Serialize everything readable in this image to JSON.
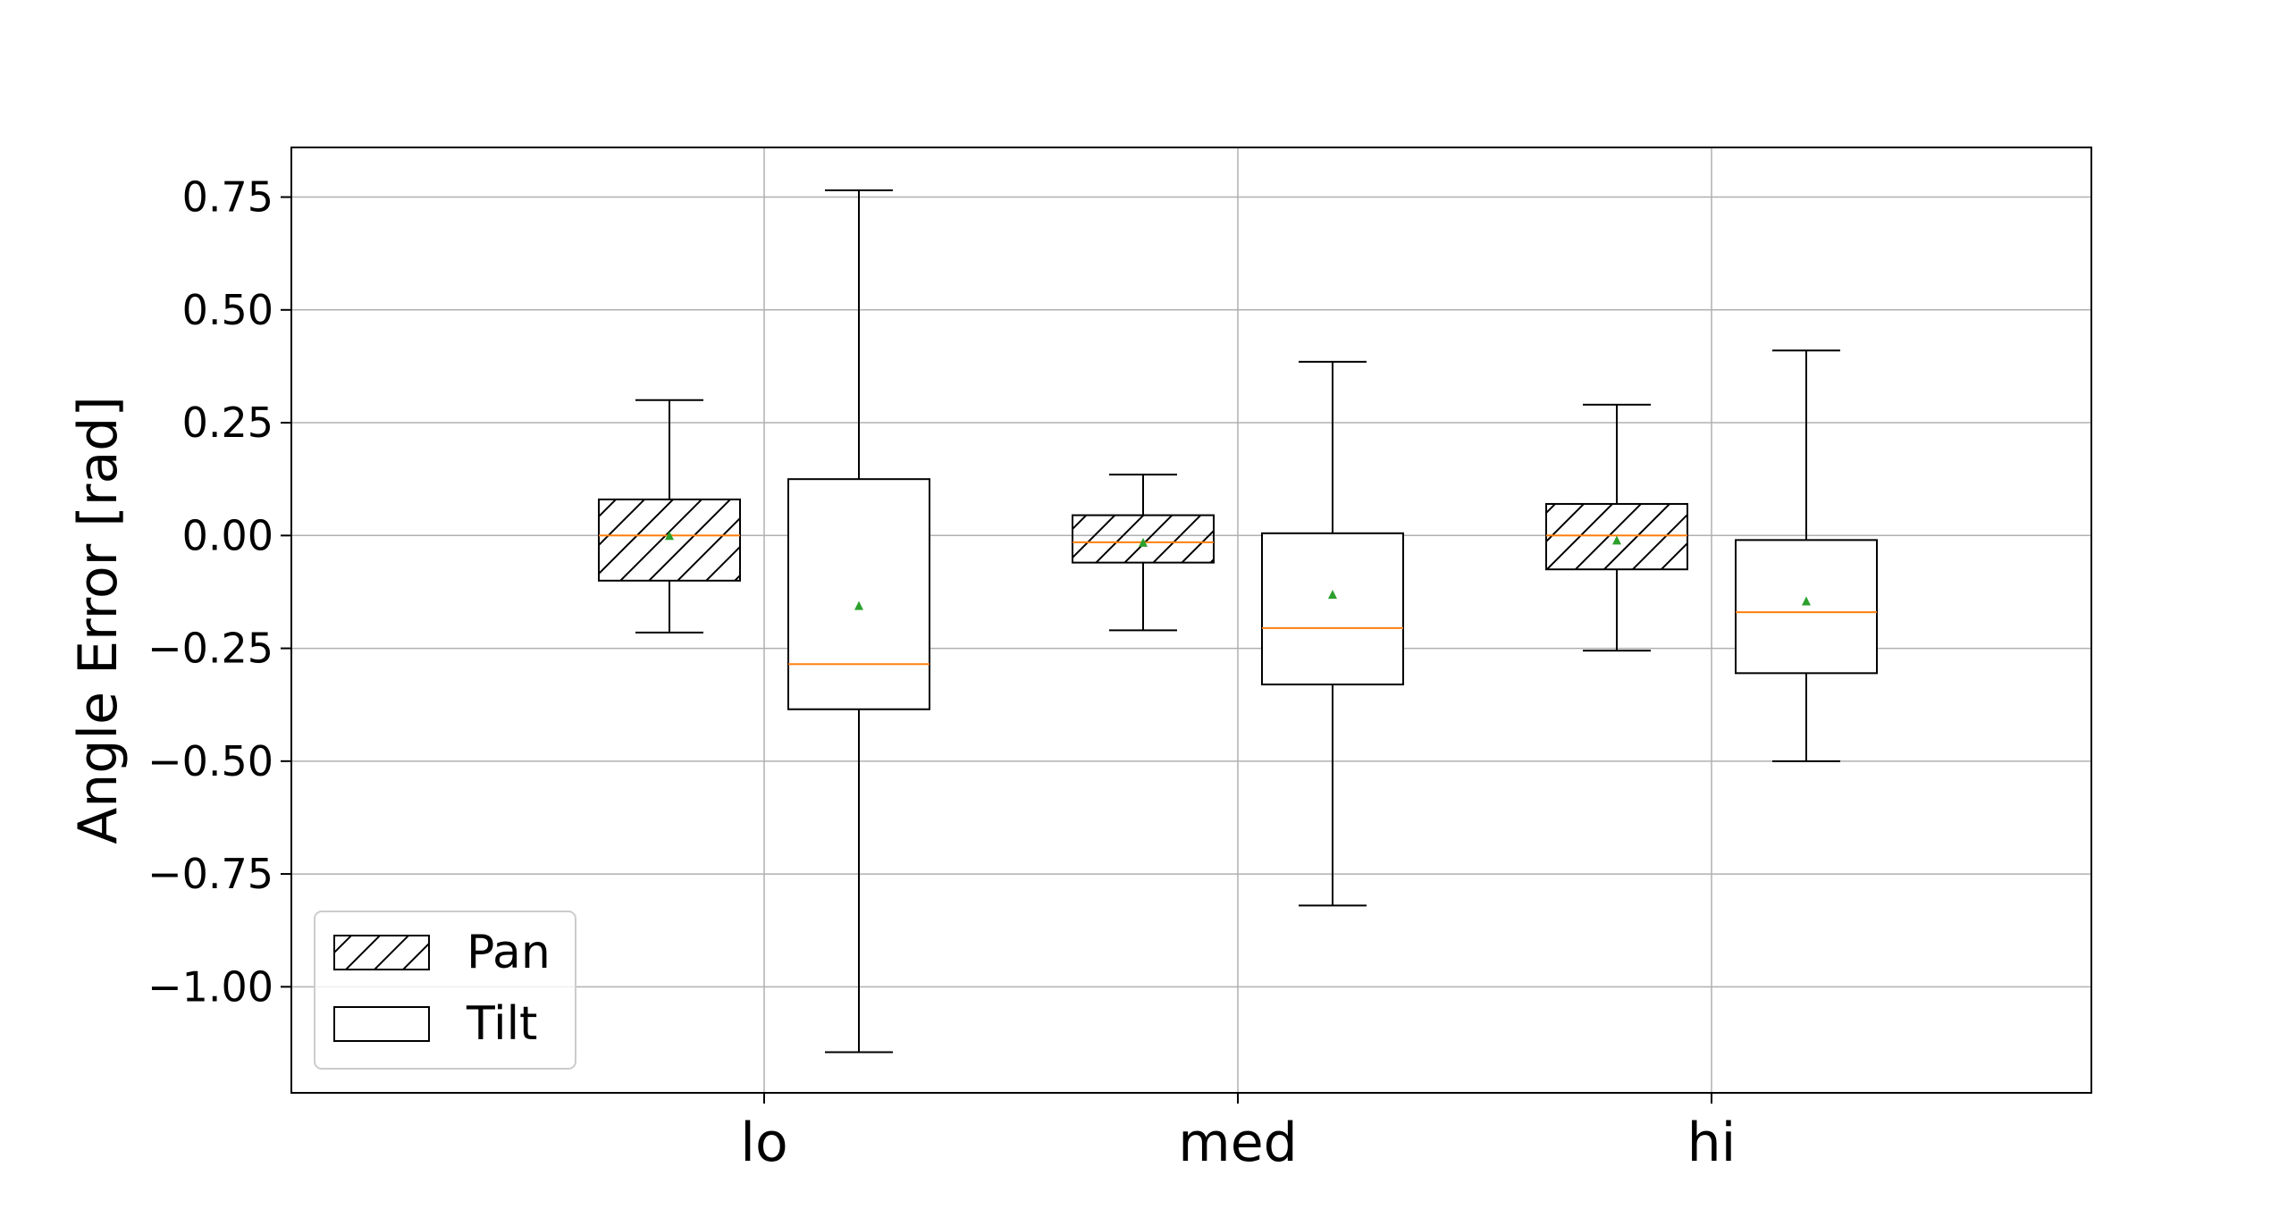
{
  "chart_data": {
    "type": "boxplot",
    "ylabel": "Angle Error [rad]",
    "xlabel": "",
    "title": "",
    "categories": [
      "lo",
      "med",
      "hi"
    ],
    "ylim": [
      -1.235,
      0.86
    ],
    "yticks": [
      0.75,
      0.5,
      0.25,
      0.0,
      -0.25,
      -0.5,
      -0.75,
      -1.0
    ],
    "ytick_labels": [
      "0.75",
      "0.50",
      "0.25",
      "0.00",
      "−0.25",
      "−0.50",
      "−0.75",
      "−1.00"
    ],
    "grid": true,
    "legend_position": "lower-left",
    "series": [
      {
        "name": "Pan",
        "hatch": true,
        "stats": [
          {
            "whislo": -0.215,
            "q1": -0.1,
            "med": 0.0,
            "q3": 0.08,
            "whishi": 0.3,
            "mean": 0.0
          },
          {
            "whislo": -0.21,
            "q1": -0.06,
            "med": -0.015,
            "q3": 0.045,
            "whishi": 0.135,
            "mean": -0.015
          },
          {
            "whislo": -0.255,
            "q1": -0.075,
            "med": 0.0,
            "q3": 0.07,
            "whishi": 0.29,
            "mean": -0.01
          }
        ]
      },
      {
        "name": "Tilt",
        "hatch": false,
        "stats": [
          {
            "whislo": -1.145,
            "q1": -0.385,
            "med": -0.285,
            "q3": 0.125,
            "whishi": 0.765,
            "mean": -0.155
          },
          {
            "whislo": -0.82,
            "q1": -0.33,
            "med": -0.205,
            "q3": 0.005,
            "whishi": 0.385,
            "mean": -0.13
          },
          {
            "whislo": -0.5,
            "q1": -0.305,
            "med": -0.17,
            "q3": -0.01,
            "whishi": 0.41,
            "mean": -0.145
          }
        ]
      }
    ],
    "colors": {
      "median": "#ff7f0e",
      "mean": "#2ca02c",
      "box": "#000000",
      "grid": "#b0b0b0"
    }
  }
}
